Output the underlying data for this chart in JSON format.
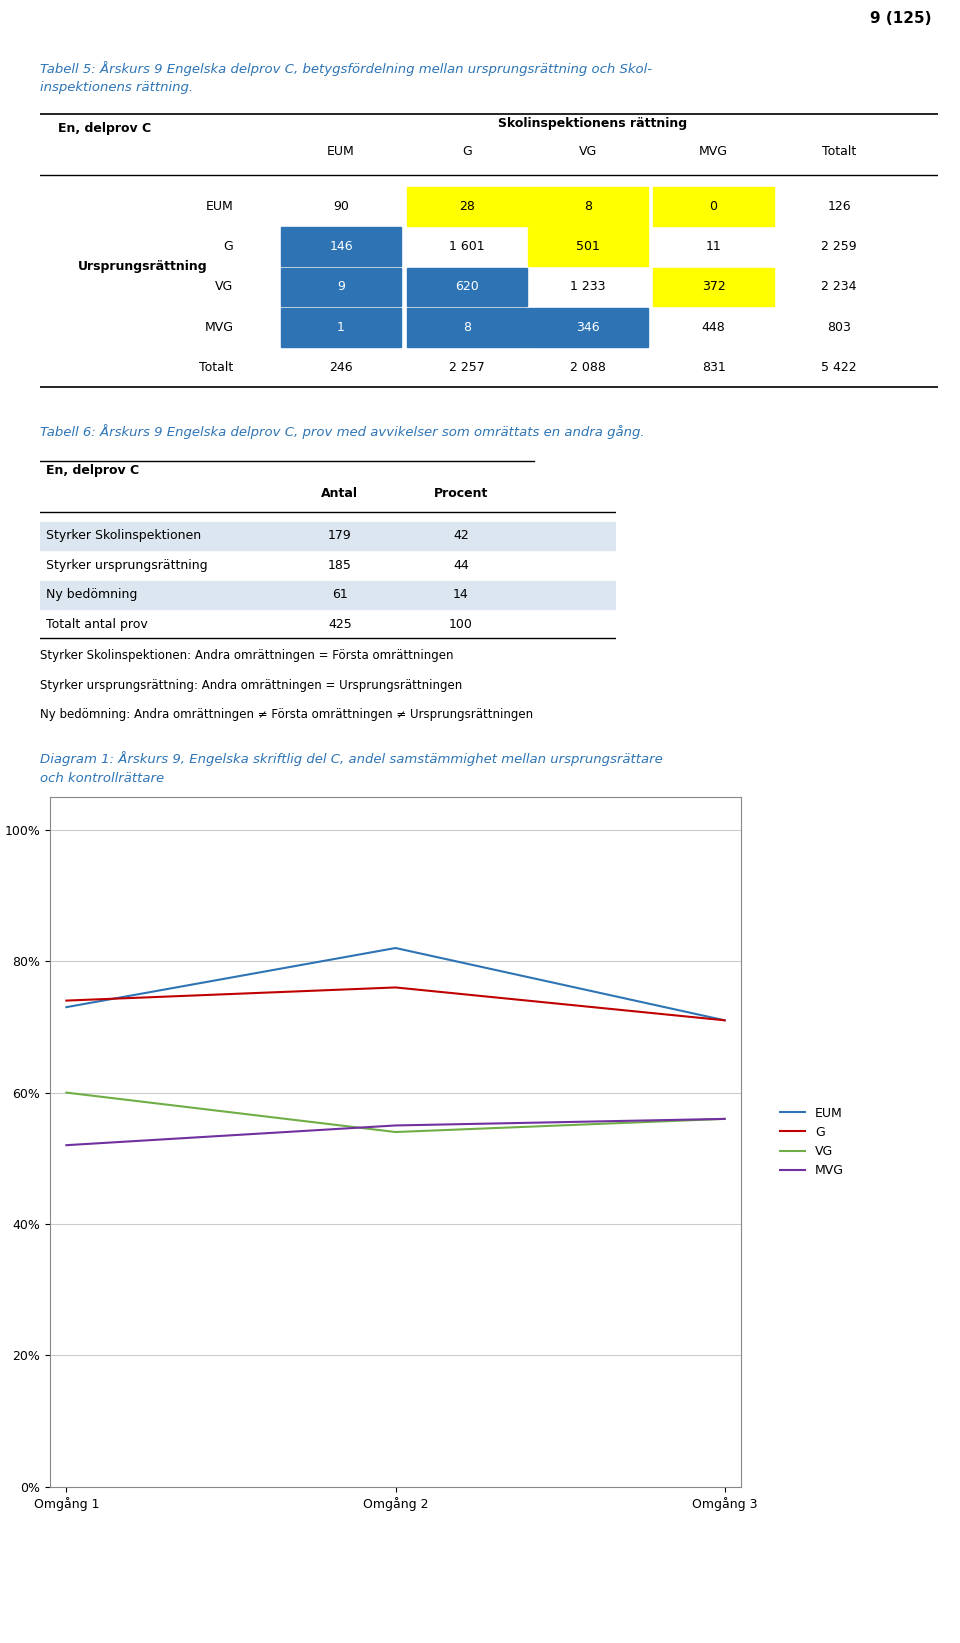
{
  "page_number": "9 (125)",
  "table5_title_line1": "Tabell 5: Årskurs 9 Engelska delprov C, betygsfördelning mellan ursprungsrättning och Skol-",
  "table5_title_line2": "inspektionens rättning.",
  "table5_header_main": "Skolinspektionens rättning",
  "table5_header_cols": [
    "EUM",
    "G",
    "VG",
    "MVG",
    "Totalt"
  ],
  "table5_row_header": "Ursprungsrättning",
  "table5_rows": [
    "EUM",
    "G",
    "VG",
    "MVG",
    "Totalt"
  ],
  "table5_data_formatted": [
    [
      "90",
      "28",
      "8",
      "0",
      "126"
    ],
    [
      "146",
      "1 601",
      "501",
      "11",
      "2 259"
    ],
    [
      "9",
      "620",
      "1 233",
      "372",
      "2 234"
    ],
    [
      "1",
      "8",
      "346",
      "448",
      "803"
    ],
    [
      "246",
      "2 257",
      "2 088",
      "831",
      "5 422"
    ]
  ],
  "table5_cell_colors": [
    [
      "white",
      "yellow",
      "yellow",
      "yellow",
      "white"
    ],
    [
      "blue",
      "white",
      "yellow",
      "white",
      "white"
    ],
    [
      "blue",
      "blue",
      "white",
      "yellow",
      "white"
    ],
    [
      "blue",
      "blue",
      "blue",
      "white",
      "white"
    ],
    [
      "white",
      "white",
      "white",
      "white",
      "white"
    ]
  ],
  "blue_color": "#2E74B5",
  "yellow_color": "#FFFF00",
  "table6_title": "Tabell 6: Årskurs 9 Engelska delprov C, prov med avvikelser som omrättats en andra gång.",
  "table6_header": "En, delprov C",
  "table6_rows": [
    "Styrker Skolinspektionen",
    "Styrker ursprungsrättning",
    "Ny bedömning",
    "Totalt antal prov"
  ],
  "table6_antal": [
    "179",
    "185",
    "61",
    "425"
  ],
  "table6_procent": [
    "42",
    "44",
    "14",
    "100"
  ],
  "table6_row_colors": [
    "#dce6f1",
    "white",
    "#dce6f1",
    "white"
  ],
  "footnote1": "Styrker Skolinspektionen: Andra omrättningen = Första omrättningen",
  "footnote2": "Styrker ursprungsrättning: Andra omrättningen = Ursprungsrättningen",
  "footnote3": "Ny bedömning: Andra omrättningen ≠ Första omrättningen ≠ Ursprungsrättningen",
  "diagram_title_line1": "Diagram 1: Årskurs 9, Engelska skriftlig del C, andel samstämmighet mellan ursprungsrättare",
  "diagram_title_line2": "och kontrollrättare",
  "diagram_x_labels": [
    "Omgång 1",
    "Omgång 2",
    "Omgång 3"
  ],
  "diagram_EUM": [
    0.73,
    0.82,
    0.71
  ],
  "diagram_G": [
    0.74,
    0.76,
    0.71
  ],
  "diagram_VG": [
    0.6,
    0.54,
    0.56
  ],
  "diagram_MVG": [
    0.52,
    0.55,
    0.56
  ],
  "diagram_colors": {
    "EUM": "#2E74B5",
    "G": "#C00000",
    "VG": "#70AD47",
    "MVG": "#7030A0"
  },
  "diagram_yticks": [
    0.0,
    0.2,
    0.4,
    0.6,
    0.8,
    1.0
  ],
  "diagram_ytick_labels": [
    "0%",
    "20%",
    "40%",
    "60%",
    "80%",
    "100%"
  ],
  "title_color": "#2E75B6"
}
